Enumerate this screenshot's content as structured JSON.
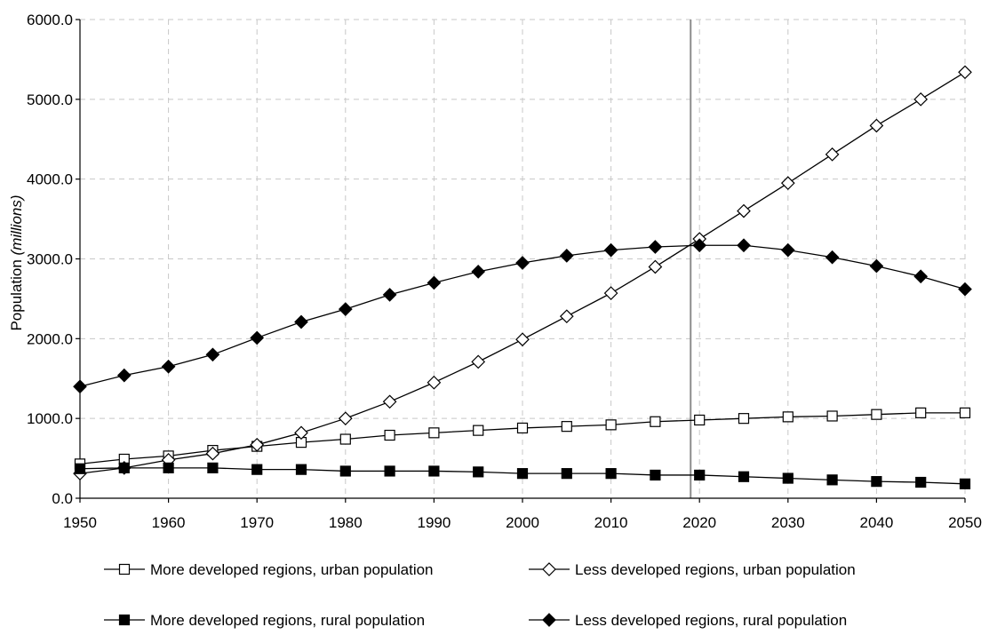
{
  "chart_data": {
    "type": "line",
    "ylabel_main": "Population ",
    "ylabel_unit": "(millions)",
    "xlabel": "",
    "x": [
      1950,
      1955,
      1960,
      1965,
      1970,
      1975,
      1980,
      1985,
      1990,
      1995,
      2000,
      2005,
      2010,
      2015,
      2020,
      2025,
      2030,
      2035,
      2040,
      2045,
      2050
    ],
    "xticks": [
      "1950",
      "1960",
      "1970",
      "1980",
      "1990",
      "2000",
      "2010",
      "2020",
      "2030",
      "2040",
      "2050"
    ],
    "yticks": [
      "0.0",
      "1000.0",
      "2000.0",
      "3000.0",
      "4000.0",
      "5000.0",
      "6000.0"
    ],
    "xlim": [
      1950,
      2050
    ],
    "ylim": [
      0,
      6000
    ],
    "grid": true,
    "reference_line_x": 2019,
    "legend_position": "bottom",
    "series": [
      {
        "name": "More developed regions, urban population",
        "marker": "open-square",
        "values": [
          430,
          490,
          530,
          600,
          650,
          700,
          740,
          790,
          820,
          850,
          880,
          900,
          920,
          960,
          980,
          1000,
          1020,
          1030,
          1050,
          1070,
          1070
        ]
      },
      {
        "name": "Less developed regions, urban population",
        "marker": "open-diamond",
        "values": [
          310,
          380,
          480,
          560,
          670,
          820,
          1000,
          1210,
          1450,
          1710,
          1990,
          2280,
          2570,
          2900,
          3250,
          3600,
          3950,
          4310,
          4670,
          5000,
          5340
        ]
      },
      {
        "name": "More developed regions, rural population",
        "marker": "filled-square",
        "values": [
          370,
          380,
          380,
          380,
          360,
          360,
          340,
          340,
          340,
          330,
          310,
          310,
          310,
          290,
          290,
          270,
          250,
          230,
          210,
          200,
          180
        ]
      },
      {
        "name": "Less developed regions, rural population",
        "marker": "filled-diamond",
        "values": [
          1400,
          1540,
          1650,
          1800,
          2010,
          2210,
          2370,
          2550,
          2700,
          2840,
          2950,
          3040,
          3110,
          3150,
          3170,
          3170,
          3110,
          3020,
          2910,
          2780,
          2620
        ]
      }
    ]
  }
}
